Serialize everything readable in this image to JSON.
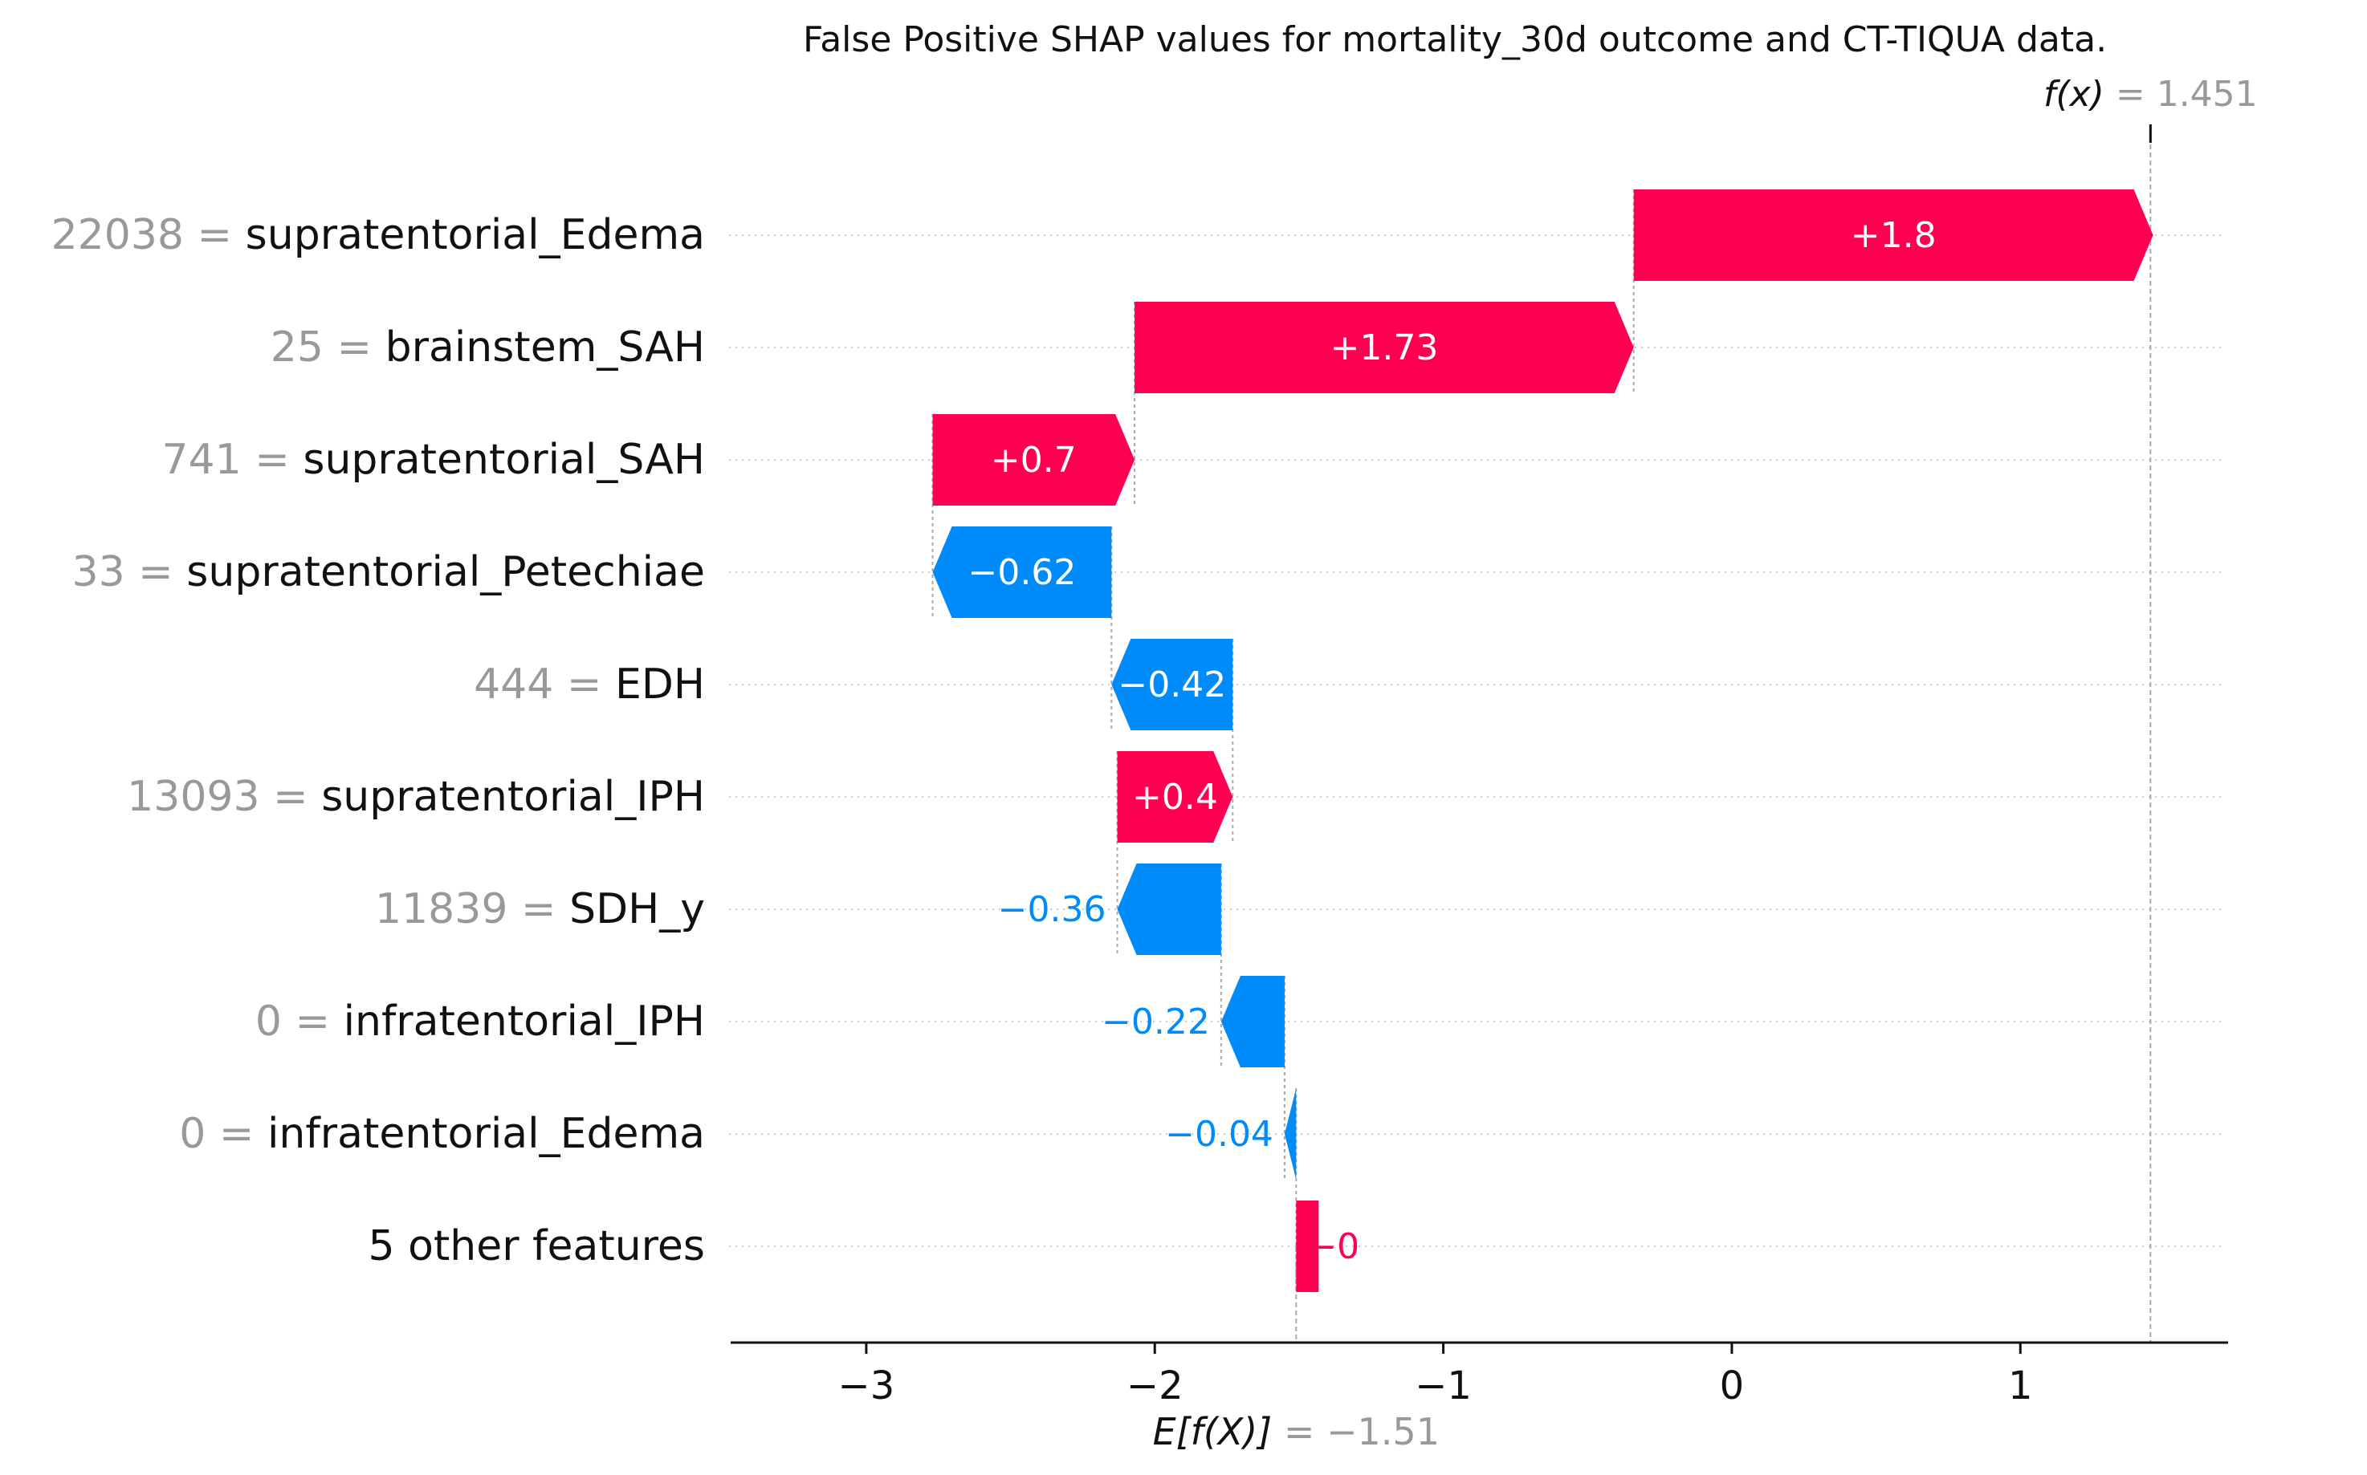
{
  "chart_data": {
    "type": "waterfall",
    "title": "False Positive SHAP values for mortality_30d outcome and CT-TIQUA data.",
    "base_value": -1.51,
    "output_value": 1.451,
    "base_label": "E[f(X)] = −1.51",
    "base_label_func": "E[f(X)]",
    "base_label_value": "= −1.51",
    "output_label_func": "f(x)",
    "output_label_value": "= 1.451",
    "xlim": [
      -3.47,
      1.72
    ],
    "xticks": [
      -3,
      -2,
      -1,
      0,
      1
    ],
    "xtick_labels": [
      "−3",
      "−2",
      "−1",
      "0",
      "1"
    ],
    "features": [
      {
        "value": "22038",
        "name": "supratentorial_Edema",
        "shap": 1.8,
        "label": "+1.8"
      },
      {
        "value": "25",
        "name": "brainstem_SAH",
        "shap": 1.73,
        "label": "+1.73"
      },
      {
        "value": "741",
        "name": "supratentorial_SAH",
        "shap": 0.7,
        "label": "+0.7"
      },
      {
        "value": "33",
        "name": "supratentorial_Petechiae",
        "shap": -0.62,
        "label": "−0.62"
      },
      {
        "value": "444",
        "name": "EDH",
        "shap": -0.42,
        "label": "−0.42"
      },
      {
        "value": "13093",
        "name": "supratentorial_IPH",
        "shap": 0.4,
        "label": "+0.4"
      },
      {
        "value": "11839",
        "name": "SDH_y",
        "shap": -0.36,
        "label": "−0.36"
      },
      {
        "value": "0",
        "name": "infratentorial_IPH",
        "shap": -0.22,
        "label": "−0.22"
      },
      {
        "value": "0",
        "name": "infratentorial_Edema",
        "shap": -0.04,
        "label": "−0.04"
      },
      {
        "value": "",
        "name": "5 other features",
        "shap": -0.0,
        "label": "−0"
      }
    ],
    "colors": {
      "positive": "#ff0051",
      "negative": "#008bfb",
      "text_gray": "#999999",
      "text_dark": "#111111",
      "grid": "#cccccc"
    }
  }
}
